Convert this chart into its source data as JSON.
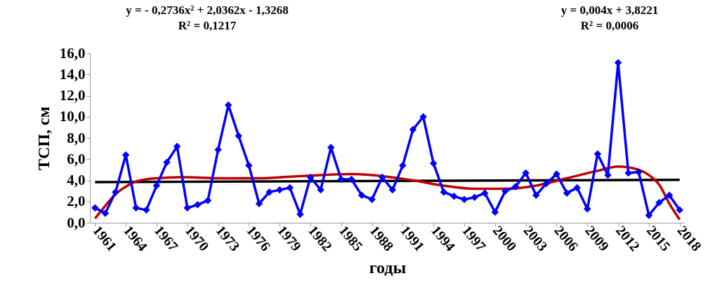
{
  "chart_data": {
    "type": "line",
    "xlabel": "годы",
    "ylabel": "ТСП, см",
    "annotations": [
      "y = - 0,2736x² + 2,0362x - 1,3268\nR² = 0,1217",
      "y = 0,004x + 3,8221\nR² = 0,0006"
    ],
    "x": [
      1961,
      1962,
      1963,
      1964,
      1965,
      1966,
      1967,
      1968,
      1969,
      1970,
      1971,
      1972,
      1973,
      1974,
      1975,
      1976,
      1977,
      1978,
      1979,
      1980,
      1981,
      1982,
      1983,
      1984,
      1985,
      1986,
      1987,
      1988,
      1989,
      1990,
      1991,
      1992,
      1993,
      1994,
      1995,
      1996,
      1997,
      1998,
      1999,
      2000,
      2001,
      2002,
      2003,
      2004,
      2005,
      2006,
      2007,
      2008,
      2009,
      2010,
      2011,
      2012,
      2013,
      2014,
      2015,
      2016,
      2017,
      2018
    ],
    "series": [
      {
        "color": "#0000ff",
        "values": [
          1.4,
          0.9,
          2.9,
          6.4,
          1.4,
          1.2,
          3.5,
          5.7,
          7.2,
          1.4,
          1.7,
          2.1,
          6.9,
          11.1,
          8.2,
          5.4,
          1.8,
          2.9,
          3.1,
          3.3,
          0.8,
          4.3,
          3.1,
          7.1,
          4.1,
          4.1,
          2.6,
          2.2,
          4.3,
          3.1,
          5.4,
          8.8,
          10.0,
          5.6,
          2.9,
          2.5,
          2.2,
          2.4,
          2.8,
          1.0,
          3.0,
          3.4,
          4.7,
          2.6,
          3.7,
          4.6,
          2.8,
          3.3,
          1.3,
          6.5,
          4.5,
          15.1,
          4.7,
          4.8,
          0.7,
          1.9,
          2.6,
          1.2
        ]
      },
      {
        "type": "line",
        "color": "#c00000",
        "marker": "none",
        "x": [
          1961,
          1962,
          1963,
          1964,
          1965,
          1967,
          1970,
          1973,
          1977,
          1980,
          1983,
          1986,
          1989,
          1992,
          1995,
          1998,
          2001,
          2004,
          2007,
          2010,
          2012,
          2014,
          2015,
          2016,
          2017,
          2018
        ],
        "values": [
          0.4,
          1.6,
          2.7,
          3.4,
          3.9,
          4.2,
          4.3,
          4.2,
          4.2,
          4.35,
          4.5,
          4.6,
          4.4,
          4.0,
          3.5,
          3.2,
          3.2,
          3.5,
          4.2,
          4.9,
          5.3,
          5.0,
          4.5,
          3.6,
          1.8,
          0.3
        ]
      },
      {
        "type": "line",
        "color": "#000000",
        "marker": "none",
        "x": [
          1961,
          2018
        ],
        "values": [
          3.83,
          4.05
        ]
      }
    ],
    "xlim": [
      1960.5,
      2018.5
    ],
    "xticks": [
      1961,
      1964,
      1967,
      1970,
      1973,
      1976,
      1979,
      1982,
      1985,
      1988,
      1991,
      1994,
      1997,
      2000,
      2003,
      2006,
      2009,
      2012,
      2015,
      2018
    ],
    "ylim": [
      0,
      16
    ],
    "yticks": [
      {
        "value": 0,
        "label": "0,0"
      },
      {
        "value": 2,
        "label": "2,0"
      },
      {
        "value": 4,
        "label": "4,0"
      },
      {
        "value": 6,
        "label": "6,0"
      },
      {
        "value": 8,
        "label": "8,0"
      },
      {
        "value": 10,
        "label": "10,0"
      },
      {
        "value": 12,
        "label": "12,0"
      },
      {
        "value": 14,
        "label": "14,0"
      },
      {
        "value": 16,
        "label": "16,0"
      }
    ],
    "grid": false,
    "marker": "diamond",
    "line_style": "solid"
  }
}
